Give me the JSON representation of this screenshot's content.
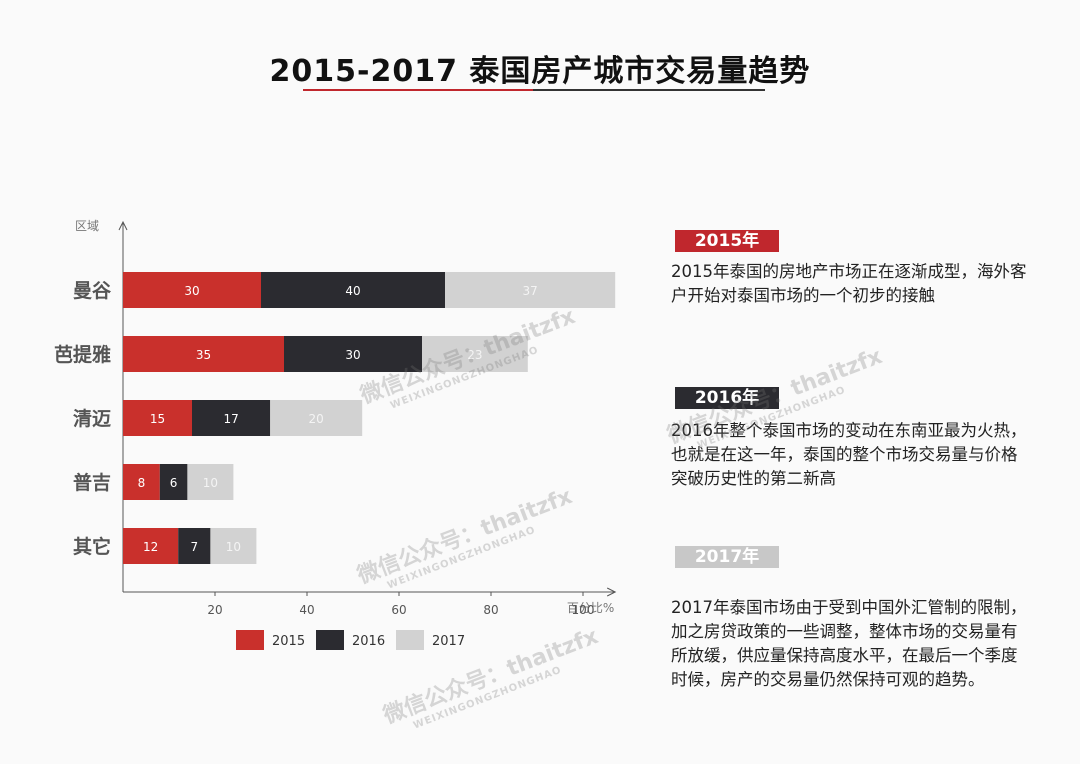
{
  "page": {
    "title": "2015-2017 泰国房产城市交易量趋势"
  },
  "colors": {
    "y2015": "#c9302c",
    "y2016": "#2b2b30",
    "y2017": "#d2d2d2",
    "accent": "#c0272d",
    "badge2017": "#c8c8c8"
  },
  "chart_data": {
    "type": "bar",
    "orientation": "horizontal",
    "stacked": true,
    "categories": [
      "曼谷",
      "芭提雅",
      "清迈",
      "普吉",
      "其它"
    ],
    "series": [
      {
        "name": "2015",
        "values": [
          30,
          35,
          15,
          8,
          12
        ],
        "label_color": "#ffffff"
      },
      {
        "name": "2016",
        "values": [
          40,
          30,
          17,
          6,
          7
        ],
        "label_color": "#ffffff"
      },
      {
        "name": "2017",
        "values": [
          37,
          23,
          20,
          10,
          10
        ],
        "label_color": "#f4f4f4"
      }
    ],
    "ylabel": "区域",
    "xlabel": "百分比%",
    "xticks": [
      20,
      40,
      60,
      80,
      100
    ],
    "xlim": [
      0,
      107
    ],
    "legend": "bottom"
  },
  "notes": [
    {
      "badge": "2015年",
      "badge_color": "#c0272d",
      "text": "2015年泰国的房地产市场正在逐渐成型，海外客户开始对泰国市场的一个初步的接触"
    },
    {
      "badge": "2016年",
      "badge_color": "#2b2b30",
      "text": "2016年整个泰国市场的变动在东南亚最为火热，也就是在这一年，泰国的整个市场交易量与价格突破历史性的第二新高"
    },
    {
      "badge": "2017年",
      "badge_color": "#c8c8c8",
      "text": "2017年泰国市场由于受到中国外汇管制的限制，加之房贷政策的一些调整，整体市场的交易量有所放缓，供应量保持高度水平，在最后一个季度时候，房产的交易量仍然保持可观的趋势。"
    }
  ],
  "watermark": {
    "text": "微信公众号：thaitzfx",
    "sub": "WEIXINGONGZHONGHAO"
  }
}
